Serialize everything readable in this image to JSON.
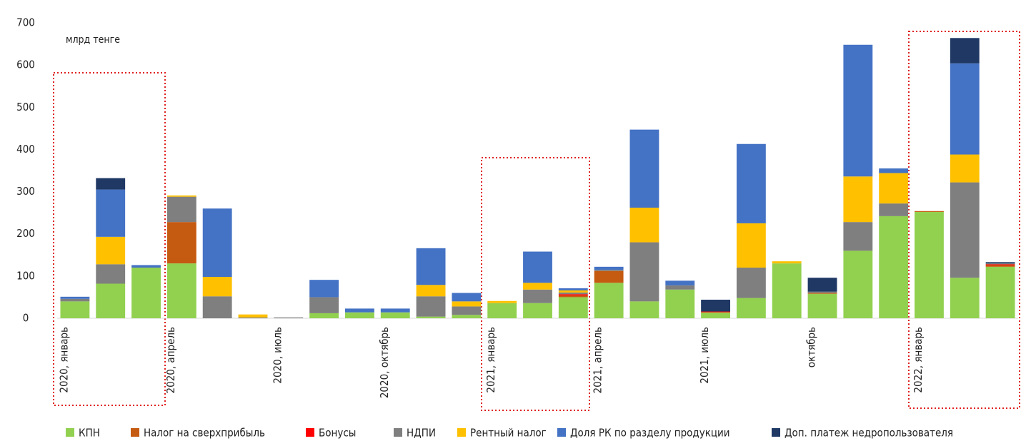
{
  "chart_data": {
    "type": "stacked_bar",
    "unit_label": "млрд тенге",
    "categories": [
      "2020, январь",
      null,
      null,
      "2020, апрель",
      null,
      null,
      "2020, июль",
      null,
      null,
      "2020, октябрь",
      null,
      null,
      "2021, январь",
      null,
      null,
      "2021, апрель",
      null,
      null,
      "2021, июль",
      null,
      null,
      "октябрь",
      null,
      null,
      "2022, январь",
      null,
      null
    ],
    "series": [
      {
        "name": "КПН",
        "color": "#92d050",
        "values": [
          40,
          82,
          120,
          130,
          0,
          0,
          0,
          12,
          14,
          14,
          4,
          8,
          36,
          36,
          50,
          84,
          40,
          68,
          14,
          48,
          130,
          58,
          160,
          242,
          252,
          96,
          122
        ]
      },
      {
        "name": "Налог на сверхприбыль",
        "color": "#c55a11",
        "values": [
          0,
          0,
          0,
          98,
          0,
          0,
          0,
          0,
          0,
          0,
          0,
          0,
          0,
          0,
          4,
          28,
          0,
          0,
          0,
          0,
          0,
          2,
          0,
          0,
          2,
          0,
          4
        ]
      },
      {
        "name": "Бонусы",
        "color": "#ff0000",
        "values": [
          0,
          0,
          0,
          0,
          0,
          0,
          0,
          0,
          0,
          0,
          0,
          0,
          0,
          0,
          3,
          0,
          0,
          0,
          2,
          0,
          0,
          0,
          0,
          0,
          0,
          0,
          2
        ]
      },
      {
        "name": "НДПИ",
        "color": "#7f7f7f",
        "values": [
          6,
          46,
          0,
          60,
          52,
          2,
          2,
          38,
          0,
          0,
          48,
          20,
          0,
          32,
          4,
          3,
          140,
          10,
          0,
          72,
          0,
          3,
          68,
          30,
          0,
          226,
          2
        ]
      },
      {
        "name": "Рентный налог",
        "color": "#ffc000",
        "values": [
          0,
          65,
          0,
          3,
          46,
          7,
          0,
          0,
          0,
          0,
          27,
          12,
          5,
          16,
          5,
          0,
          82,
          0,
          0,
          105,
          5,
          0,
          108,
          72,
          0,
          66,
          0
        ]
      },
      {
        "name": "Доля РК по разделу продукции",
        "color": "#4472c4",
        "values": [
          5,
          112,
          6,
          0,
          162,
          0,
          0,
          41,
          9,
          9,
          87,
          20,
          0,
          74,
          5,
          7,
          185,
          11,
          0,
          188,
          0,
          0,
          312,
          11,
          0,
          216,
          0
        ]
      },
      {
        "name": "Доп. платеж недропользователя",
        "color": "#1f3864",
        "values": [
          0,
          27,
          0,
          0,
          0,
          0,
          0,
          0,
          0,
          0,
          0,
          0,
          0,
          0,
          0,
          0,
          0,
          0,
          28,
          0,
          0,
          33,
          0,
          0,
          0,
          60,
          3
        ]
      }
    ],
    "ylim": [
      0,
      700
    ],
    "yticks": [
      0,
      100,
      200,
      300,
      400,
      500,
      600,
      700
    ],
    "grid": false,
    "legend": "bottom"
  }
}
